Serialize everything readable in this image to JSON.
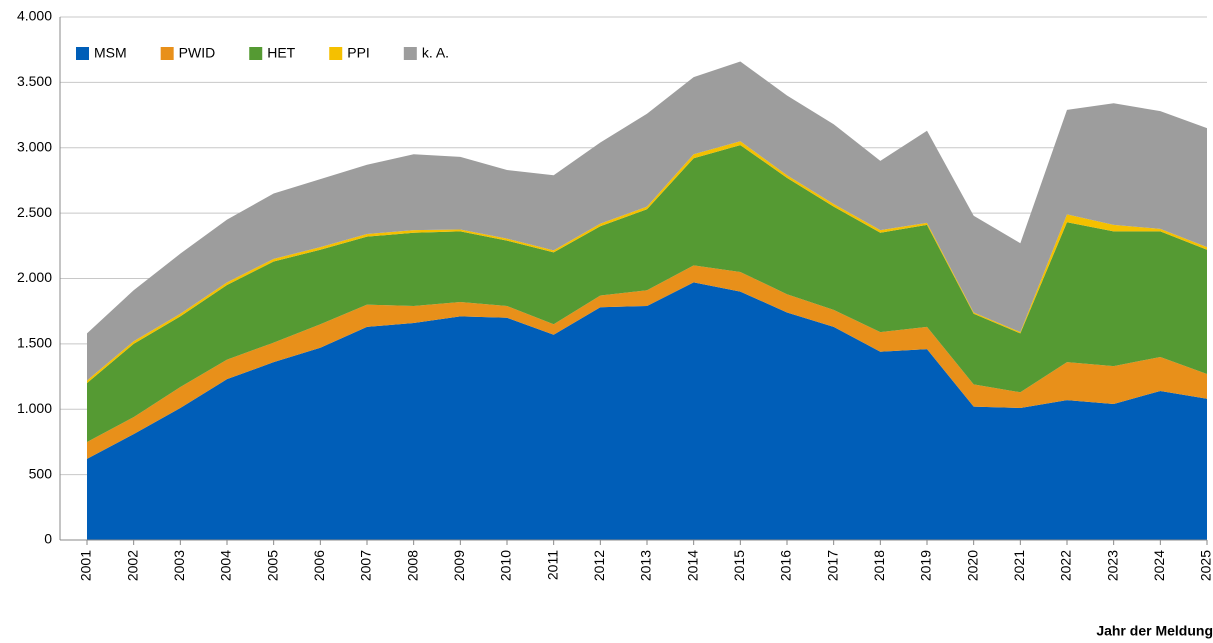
{
  "chart_data": {
    "type": "stacked_area",
    "x_label": "Jahr der Meldung",
    "categories": [
      "2001",
      "2002",
      "2003",
      "2004",
      "2005",
      "2006",
      "2007",
      "2008",
      "2009",
      "2010",
      "2011",
      "2012",
      "2013",
      "2014",
      "2015",
      "2016",
      "2017",
      "2018",
      "2019",
      "2020",
      "2021",
      "2022",
      "2023",
      "2024",
      "2025"
    ],
    "series": [
      {
        "name": "MSM",
        "color": "#005eb8",
        "values": [
          620,
          810,
          1010,
          1230,
          1360,
          1470,
          1630,
          1660,
          1710,
          1700,
          1570,
          1780,
          1790,
          1970,
          1900,
          1740,
          1630,
          1440,
          1460,
          1020,
          1010,
          1070,
          1040,
          1140,
          1080
        ]
      },
      {
        "name": "PWID",
        "color": "#e8901a",
        "values": [
          130,
          130,
          160,
          150,
          150,
          180,
          170,
          130,
          110,
          90,
          80,
          90,
          120,
          130,
          150,
          140,
          130,
          150,
          170,
          170,
          120,
          290,
          290,
          260,
          190
        ]
      },
      {
        "name": "HET",
        "color": "#559a33",
        "values": [
          450,
          560,
          540,
          570,
          620,
          570,
          520,
          560,
          540,
          500,
          550,
          530,
          620,
          820,
          970,
          890,
          790,
          760,
          780,
          540,
          450,
          1070,
          1030,
          960,
          950
        ]
      },
      {
        "name": "PPI",
        "color": "#f5c000",
        "values": [
          20,
          20,
          20,
          20,
          20,
          20,
          20,
          20,
          15,
          15,
          15,
          20,
          20,
          30,
          30,
          20,
          20,
          20,
          15,
          10,
          10,
          60,
          50,
          20,
          20
        ]
      },
      {
        "name": "k. A.",
        "color": "#9d9d9d",
        "values": [
          360,
          390,
          460,
          480,
          500,
          520,
          530,
          580,
          555,
          525,
          575,
          620,
          710,
          590,
          610,
          610,
          610,
          530,
          705,
          740,
          680,
          800,
          930,
          900,
          910
        ]
      }
    ],
    "ylim": [
      0,
      4000
    ],
    "yticks": [
      0,
      500,
      {
        "value": 1000,
        "label": "1.000"
      },
      {
        "value": 1500,
        "label": "1.500"
      },
      {
        "value": 2000,
        "label": "2.000"
      },
      {
        "value": 2500,
        "label": "2.500"
      },
      {
        "value": 3000,
        "label": "3.000"
      },
      {
        "value": 3500,
        "label": "3.500"
      },
      {
        "value": 4000,
        "label": "4.000"
      }
    ],
    "grid": true,
    "legend": "top-left"
  }
}
